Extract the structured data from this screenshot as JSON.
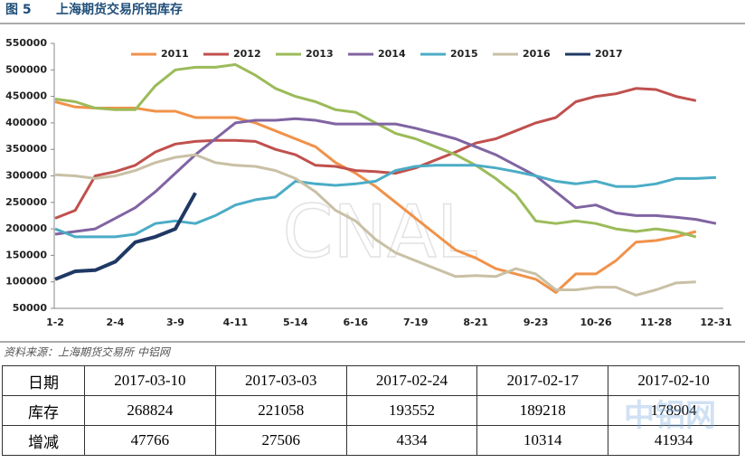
{
  "header": {
    "figure": "图 5"
  },
  "chart_data": {
    "type": "line",
    "title": "上海期货交易所铝库存",
    "watermark": "CNAL",
    "categories": [
      "1-2",
      null,
      null,
      "2-4",
      null,
      null,
      "3-9",
      null,
      null,
      "4-11",
      null,
      null,
      "5-14",
      null,
      null,
      "6-16",
      null,
      null,
      "7-19",
      null,
      null,
      "8-21",
      null,
      null,
      "9-23",
      null,
      null,
      "10-26",
      null,
      null,
      "11-28",
      null,
      null,
      "12-31"
    ],
    "ylim": [
      50000,
      550000
    ],
    "yticks": [
      50000,
      100000,
      150000,
      200000,
      250000,
      300000,
      350000,
      400000,
      450000,
      500000,
      550000
    ],
    "series": [
      {
        "name": "2011",
        "color": "#f0924a",
        "values": [
          440000,
          430000,
          428000,
          428000,
          428000,
          422000,
          422000,
          410000,
          410000,
          410000,
          400000,
          385000,
          370000,
          355000,
          325000,
          305000,
          280000,
          250000,
          220000,
          190000,
          160000,
          145000,
          125000,
          115000,
          105000,
          80000,
          115000,
          115000,
          140000,
          175000,
          178000,
          185000,
          195000,
          null
        ]
      },
      {
        "name": "2012",
        "color": "#c0504d",
        "values": [
          220000,
          235000,
          300000,
          308000,
          320000,
          345000,
          360000,
          365000,
          367000,
          367000,
          365000,
          350000,
          340000,
          320000,
          318000,
          310000,
          308000,
          305000,
          315000,
          330000,
          345000,
          362000,
          370000,
          385000,
          400000,
          410000,
          440000,
          450000,
          455000,
          465000,
          463000,
          450000,
          442000,
          null
        ]
      },
      {
        "name": "2013",
        "color": "#9bbb59",
        "values": [
          445000,
          440000,
          428000,
          425000,
          425000,
          470000,
          500000,
          505000,
          505000,
          510000,
          490000,
          465000,
          450000,
          440000,
          425000,
          420000,
          400000,
          380000,
          370000,
          355000,
          340000,
          320000,
          295000,
          265000,
          215000,
          210000,
          215000,
          210000,
          200000,
          195000,
          200000,
          195000,
          185000,
          null
        ]
      },
      {
        "name": "2014",
        "color": "#8064a2",
        "values": [
          190000,
          195000,
          200000,
          220000,
          240000,
          270000,
          305000,
          340000,
          370000,
          400000,
          405000,
          405000,
          408000,
          405000,
          398000,
          398000,
          398000,
          398000,
          390000,
          380000,
          370000,
          355000,
          340000,
          320000,
          300000,
          270000,
          240000,
          245000,
          230000,
          225000,
          225000,
          222000,
          218000,
          210000
        ]
      },
      {
        "name": "2015",
        "color": "#4bacc6",
        "values": [
          200000,
          185000,
          185000,
          185000,
          190000,
          210000,
          215000,
          210000,
          225000,
          245000,
          255000,
          260000,
          290000,
          285000,
          282000,
          285000,
          290000,
          310000,
          318000,
          320000,
          320000,
          320000,
          315000,
          308000,
          300000,
          290000,
          285000,
          290000,
          280000,
          280000,
          285000,
          295000,
          295000,
          297000
        ]
      },
      {
        "name": "2016",
        "color": "#c9c0a5",
        "values": [
          302000,
          300000,
          295000,
          300000,
          310000,
          325000,
          335000,
          340000,
          325000,
          320000,
          318000,
          310000,
          295000,
          270000,
          235000,
          215000,
          180000,
          155000,
          140000,
          125000,
          110000,
          112000,
          110000,
          125000,
          115000,
          85000,
          85000,
          90000,
          90000,
          75000,
          85000,
          98000,
          100000,
          null
        ]
      },
      {
        "name": "2017",
        "color": "#1f3864",
        "values": [
          105000,
          120000,
          122000,
          138000,
          175000,
          185000,
          200000,
          268000,
          null,
          null,
          null,
          null,
          null,
          null,
          null,
          null,
          null,
          null,
          null,
          null,
          null,
          null,
          null,
          null,
          null,
          null,
          null,
          null,
          null,
          null,
          null,
          null,
          null,
          null
        ]
      }
    ]
  },
  "source": "资料来源：上海期货交易所   中铝网",
  "table_watermark": "中铝网",
  "table": {
    "rows": [
      [
        "日期",
        "2017-03-10",
        "2017-03-03",
        "2017-02-24",
        "2017-02-17",
        "2017-02-10"
      ],
      [
        "库存",
        "268824",
        "221058",
        "193552",
        "189218",
        "178904"
      ],
      [
        "增减",
        "47766",
        "27506",
        "4334",
        "10314",
        "41934"
      ]
    ]
  }
}
